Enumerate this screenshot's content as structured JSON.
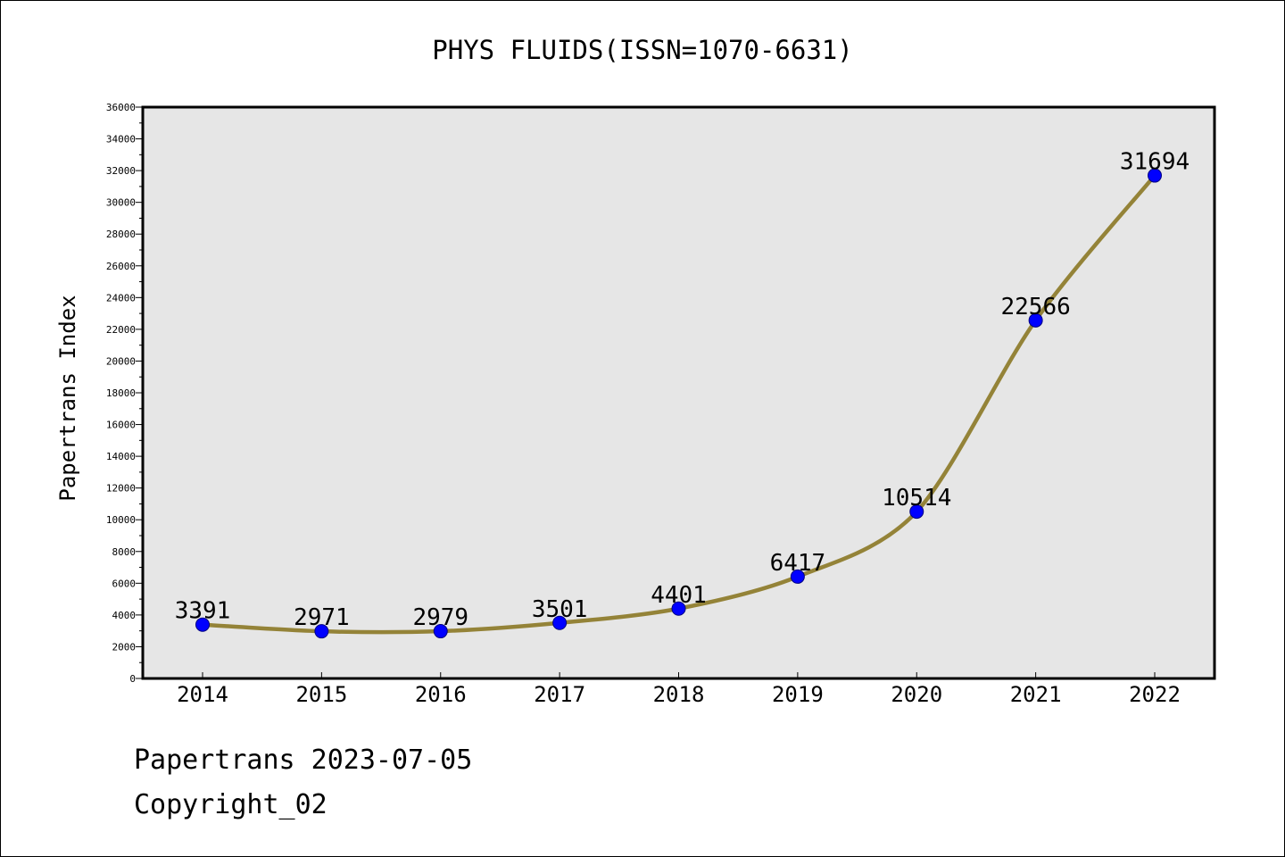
{
  "chart_data": {
    "type": "line",
    "title": "PHYS FLUIDS(ISSN=1070-6631)",
    "xlabel": "",
    "ylabel": "Papertrans Index",
    "categories": [
      "2014",
      "2015",
      "2016",
      "2017",
      "2018",
      "2019",
      "2020",
      "2021",
      "2022"
    ],
    "series": [
      {
        "name": "Papertrans Index",
        "values": [
          3391,
          2971,
          2979,
          3501,
          4401,
          6417,
          10514,
          22566,
          31694
        ],
        "labels": [
          "3391",
          "2971",
          "2979",
          "3501",
          "4401",
          "6417",
          "10514",
          "22566",
          "31694"
        ]
      }
    ],
    "ylim": [
      0,
      36000
    ],
    "yticks": [
      0,
      2000,
      4000,
      6000,
      8000,
      10000,
      12000,
      14000,
      16000,
      18000,
      20000,
      22000,
      24000,
      26000,
      28000,
      30000,
      32000,
      34000,
      36000
    ],
    "ytick_labels": [
      "0",
      "2000",
      "4000",
      "6000",
      "8000",
      "10000",
      "12000",
      "14000",
      "16000",
      "18000",
      "20000",
      "22000",
      "24000",
      "26000",
      "28000",
      "30000",
      "32000",
      "34000",
      "36000"
    ],
    "grid": false,
    "colors": {
      "plot_background": "#e6e6e6",
      "line": "#948338",
      "marker": "#0000ff",
      "marker_edge": "#000080"
    }
  },
  "footer": {
    "date_text": "Papertrans 2023-07-05",
    "copyright_text": "Copyright_02"
  }
}
